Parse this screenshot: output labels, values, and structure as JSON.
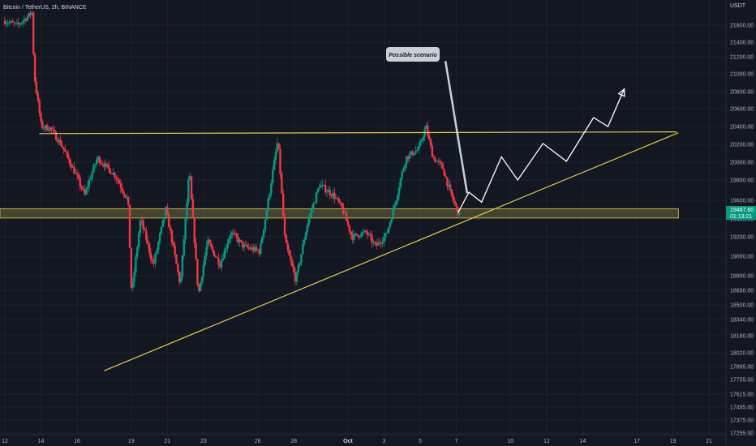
{
  "header": {
    "symbol_title": "Bitcoin / TetherUS, 2h, BINANCE",
    "currency": "USDT"
  },
  "price_tag": {
    "price": "19467.60",
    "countdown": "01:13:21",
    "color": "#089981"
  },
  "callout": {
    "text": "Possible scenario"
  },
  "colors": {
    "background": "#131722",
    "up_candle": "#089981",
    "down_candle": "#f23645",
    "trendline": "#e6c84a",
    "zone_fill": "#6b6a3a",
    "projection": "#ffffff",
    "callout_bg": "#c9d1d6"
  },
  "chart_data": {
    "type": "candlestick",
    "title": "Bitcoin / TetherUS, 2h, BINANCE",
    "y_axis_unit": "USDT",
    "y_ticks": [
      21600,
      21400,
      21200,
      21000,
      20800,
      20600,
      20400,
      20200,
      20000,
      19800,
      19600,
      19400,
      19200,
      19000,
      18800,
      18650,
      18500,
      18340,
      18180,
      18020,
      17895,
      17755,
      17615,
      17495,
      17375,
      17255
    ],
    "y_tick_labels": [
      "21600.00",
      "21400.00",
      "21200.00",
      "21000.00",
      "20800.00",
      "20600.00",
      "20400.00",
      "20200.00",
      "20000.00",
      "19800.00",
      "19600.00",
      "19400.00",
      "19200.00",
      "19000.00",
      "18800.00",
      "18650.00",
      "18500.00",
      "18340.00",
      "18180.00",
      "18020.00",
      "17895.00",
      "17755.00",
      "17615.00",
      "17495.00",
      "17375.00",
      "17255.00"
    ],
    "x_tick_labels": [
      "12",
      "14",
      "16",
      "19",
      "21",
      "23",
      "26",
      "28",
      "Oct",
      "3",
      "5",
      "7",
      "10",
      "12",
      "14",
      "17",
      "19",
      "21"
    ],
    "x_tick_days": [
      0,
      2,
      4,
      7,
      9,
      11,
      14,
      16,
      19,
      21,
      23,
      25,
      28,
      30,
      32,
      35,
      37,
      39
    ],
    "day_range": [
      0,
      39.8
    ],
    "last_price": 19467.6,
    "support_zone": [
      19410,
      19510
    ],
    "resistance_line": [
      [
        1.9,
        20320
      ],
      [
        37.2,
        20340
      ]
    ],
    "rising_trendline": [
      [
        5.5,
        17850
      ],
      [
        37.3,
        20330
      ]
    ],
    "projection_path": [
      [
        25.1,
        19470
      ],
      [
        25.7,
        19680
      ],
      [
        26.4,
        19580
      ],
      [
        27.5,
        20060
      ],
      [
        28.4,
        19800
      ],
      [
        29.8,
        20210
      ],
      [
        31.1,
        20010
      ],
      [
        32.6,
        20500
      ],
      [
        33.4,
        20400
      ],
      [
        34.3,
        20830
      ]
    ],
    "callout_pointer": [
      [
        24.4,
        21150
      ],
      [
        25.6,
        19670
      ]
    ],
    "anchors": [
      [
        0,
        21650
      ],
      [
        0.8,
        21600
      ],
      [
        1.6,
        21750
      ],
      [
        1.7,
        21000
      ],
      [
        2.1,
        20400
      ],
      [
        2.6,
        20380
      ],
      [
        3.2,
        20200
      ],
      [
        3.8,
        19950
      ],
      [
        4.5,
        19650
      ],
      [
        5.2,
        20050
      ],
      [
        6.2,
        19850
      ],
      [
        6.9,
        19600
      ],
      [
        7.1,
        18600
      ],
      [
        7.6,
        19400
      ],
      [
        8.3,
        18900
      ],
      [
        9.0,
        19500
      ],
      [
        9.8,
        18700
      ],
      [
        10.3,
        19900
      ],
      [
        10.8,
        18600
      ],
      [
        11.3,
        19150
      ],
      [
        12.0,
        18920
      ],
      [
        12.6,
        19250
      ],
      [
        13.3,
        19100
      ],
      [
        14.2,
        19050
      ],
      [
        14.8,
        19750
      ],
      [
        15.2,
        20250
      ],
      [
        15.6,
        19150
      ],
      [
        16.2,
        18750
      ],
      [
        16.9,
        19400
      ],
      [
        17.5,
        19750
      ],
      [
        18.3,
        19650
      ],
      [
        18.8,
        19500
      ],
      [
        19.3,
        19200
      ],
      [
        20.1,
        19250
      ],
      [
        20.6,
        19100
      ],
      [
        21.2,
        19220
      ],
      [
        21.6,
        19500
      ],
      [
        22.3,
        20050
      ],
      [
        23.0,
        20150
      ],
      [
        23.4,
        20400
      ],
      [
        23.8,
        20050
      ],
      [
        24.3,
        19950
      ],
      [
        24.7,
        19700
      ],
      [
        25.2,
        19460
      ]
    ]
  }
}
